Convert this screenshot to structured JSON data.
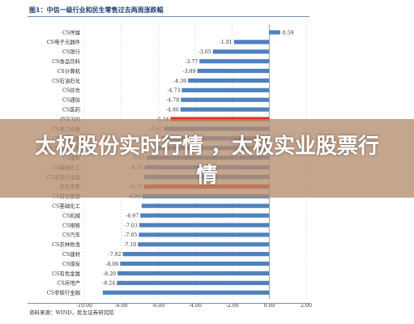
{
  "figure": {
    "title": "图1：中信一级行业和民生零售过去两周涨跌幅",
    "source": "资料来源：WIND，民生证券研究院"
  },
  "overlay": {
    "headline": "太极股份实时行情 ，太极实业股票行情"
  },
  "colors": {
    "bar": "#4f81bd",
    "highlight": "#e0301e",
    "background": "#ffffff",
    "title": "#1f3f73"
  },
  "chart_data": {
    "type": "bar",
    "orientation": "horizontal",
    "categories": [
      "CS传媒",
      "CS电子元器件",
      "CS银行",
      "CS食品饮料",
      "CS计算机",
      "CS石油石化",
      "CS综合",
      "CS通信",
      "CS医药",
      "沪深300",
      "CS电力设备",
      "CS交通运输",
      "CS电力及公用事业",
      "CS建筑",
      "CS基础化工",
      "CS非银行金融",
      "民生零售",
      "CS餐饮旅游",
      "CS基础化工",
      "CS机械",
      "CS钢铁",
      "CS汽车",
      "CS农林牧渔",
      "CS建材",
      "CS煤炭",
      "CS有色金属",
      "CS房地产",
      "CS非银行金融"
    ],
    "values": [
      0.59,
      -1.91,
      -3.05,
      -3.77,
      -3.89,
      -4.39,
      -4.73,
      -4.78,
      -4.8,
      -5.34,
      -5.67,
      -5.8,
      -6.3,
      -6.63,
      -6.74,
      -6.76,
      -6.76,
      -6.86,
      -6.9,
      -6.97,
      -7.03,
      -7.05,
      -7.1,
      -7.92,
      -8.06,
      -8.2,
      -8.24,
      -9.0
    ],
    "value_labels": [
      "0.59",
      "-1.91",
      "-3.05",
      "-3.77",
      "-3.89",
      "-4.39",
      "-4.73",
      "-4.78",
      "-4.80",
      "-5.34",
      "-5.67",
      "",
      "",
      "-6.63",
      "-6.74",
      "",
      "-6.76",
      "-6.86",
      "",
      "-6.97",
      "-7.03",
      "-7.05",
      "-7.10",
      "-7.92",
      "-8.06",
      "-8.20",
      "-8.24",
      ""
    ],
    "highlight_categories": [
      "沪深300",
      "民生零售"
    ],
    "xlim": [
      -10,
      2
    ],
    "xticks": [
      -10,
      -8,
      -6,
      -4,
      -2,
      0,
      2
    ],
    "xtick_labels": [
      "-10.00",
      "-8.00",
      "-6.00",
      "-4.00",
      "-2.00",
      "0.00",
      "2.00"
    ],
    "xlabel": "",
    "ylabel": "",
    "grid": true
  }
}
